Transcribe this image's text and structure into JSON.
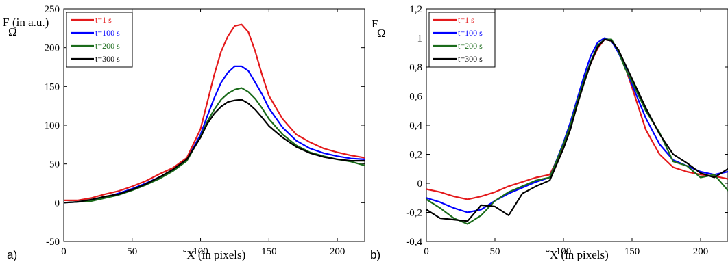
{
  "chart_data": [
    {
      "type": "line",
      "panel_label": "a)",
      "ylabel": "F",
      "ylabel_sub": "Ω",
      "ylabel_suffix": "(in a.u.)",
      "xlabel": "˘X (in pixels)",
      "xlim": [
        0,
        220
      ],
      "ylim": [
        -50,
        250
      ],
      "xticks": [
        0,
        50,
        100,
        150,
        200
      ],
      "yticks": [
        -50,
        0,
        50,
        100,
        150,
        200,
        250
      ],
      "ytick_labels": [
        "-50",
        "0",
        "50",
        "100",
        "150",
        "200",
        "250"
      ],
      "legend_position": "top-left",
      "x": [
        0,
        10,
        20,
        30,
        40,
        50,
        60,
        70,
        80,
        90,
        100,
        105,
        110,
        115,
        120,
        125,
        130,
        135,
        140,
        145,
        150,
        160,
        170,
        180,
        190,
        200,
        210,
        220
      ],
      "series": [
        {
          "name": "t=1 s",
          "color": "#e41a1c",
          "values": [
            3,
            3,
            6,
            11,
            15,
            21,
            28,
            37,
            45,
            58,
            95,
            130,
            165,
            195,
            215,
            228,
            230,
            220,
            195,
            165,
            138,
            108,
            88,
            78,
            70,
            65,
            61,
            58
          ]
        },
        {
          "name": "t=100 s",
          "color": "#0000ff",
          "values": [
            0,
            1,
            3,
            7,
            12,
            18,
            25,
            33,
            42,
            55,
            88,
            112,
            135,
            155,
            168,
            176,
            176,
            170,
            155,
            140,
            122,
            97,
            80,
            70,
            64,
            60,
            57,
            56
          ]
        },
        {
          "name": "t=200 s",
          "color": "#1a6b1a",
          "values": [
            0,
            1,
            2,
            6,
            10,
            16,
            23,
            31,
            41,
            54,
            85,
            105,
            120,
            133,
            141,
            146,
            148,
            143,
            134,
            122,
            108,
            88,
            74,
            65,
            60,
            56,
            53,
            48
          ]
        },
        {
          "name": "t=300 s",
          "color": "#000000",
          "values": [
            0,
            1,
            4,
            8,
            11,
            17,
            24,
            33,
            43,
            56,
            84,
            102,
            115,
            124,
            130,
            132,
            133,
            128,
            120,
            110,
            99,
            84,
            72,
            64,
            59,
            56,
            54,
            54
          ]
        }
      ]
    },
    {
      "type": "line",
      "panel_label": "b)",
      "ylabel": "F",
      "ylabel_sub": "Ω",
      "xlabel": "˘X (in pixels)",
      "xlim": [
        0,
        220
      ],
      "ylim": [
        -0.4,
        1.2
      ],
      "xticks": [
        0,
        50,
        100,
        150,
        200
      ],
      "yticks": [
        -0.4,
        -0.2,
        0,
        0.2,
        0.4,
        0.6,
        0.8,
        1,
        1.2
      ],
      "ytick_labels": [
        "-0,4",
        "-0,2",
        "0",
        "0,2",
        "0,4",
        "0,6",
        "0,8",
        "1",
        "1,2"
      ],
      "legend_position": "top-left",
      "x": [
        0,
        10,
        20,
        30,
        40,
        50,
        60,
        70,
        80,
        90,
        100,
        105,
        110,
        115,
        120,
        125,
        130,
        135,
        140,
        145,
        150,
        160,
        170,
        180,
        190,
        200,
        210,
        220
      ],
      "series": [
        {
          "name": "t=1 s",
          "color": "#e41a1c",
          "values": [
            -0.04,
            -0.06,
            -0.09,
            -0.11,
            -0.09,
            -0.06,
            -0.02,
            0.01,
            0.04,
            0.06,
            0.25,
            0.38,
            0.55,
            0.7,
            0.83,
            0.93,
            0.99,
            0.98,
            0.92,
            0.8,
            0.66,
            0.37,
            0.2,
            0.11,
            0.08,
            0.06,
            0.05,
            0.03
          ]
        },
        {
          "name": "t=100 s",
          "color": "#0000ff",
          "values": [
            -0.1,
            -0.13,
            -0.17,
            -0.2,
            -0.18,
            -0.12,
            -0.07,
            -0.03,
            0.01,
            0.04,
            0.28,
            0.42,
            0.58,
            0.74,
            0.88,
            0.97,
            1.0,
            0.98,
            0.9,
            0.8,
            0.68,
            0.45,
            0.27,
            0.16,
            0.12,
            0.08,
            0.06,
            0.08
          ]
        },
        {
          "name": "t=200 s",
          "color": "#1a6b1a",
          "values": [
            -0.11,
            -0.17,
            -0.24,
            -0.28,
            -0.22,
            -0.12,
            -0.06,
            -0.02,
            0.02,
            0.04,
            0.27,
            0.4,
            0.56,
            0.71,
            0.84,
            0.95,
            0.99,
            0.99,
            0.91,
            0.79,
            0.7,
            0.5,
            0.35,
            0.15,
            0.12,
            0.04,
            0.06,
            -0.05
          ]
        },
        {
          "name": "t=300 s",
          "color": "#000000",
          "values": [
            -0.18,
            -0.24,
            -0.25,
            -0.26,
            -0.15,
            -0.16,
            -0.22,
            -0.07,
            -0.02,
            0.02,
            0.24,
            0.37,
            0.54,
            0.69,
            0.83,
            0.94,
            0.99,
            0.98,
            0.92,
            0.82,
            0.72,
            0.52,
            0.34,
            0.2,
            0.14,
            0.07,
            0.04,
            0.1
          ]
        }
      ]
    }
  ]
}
